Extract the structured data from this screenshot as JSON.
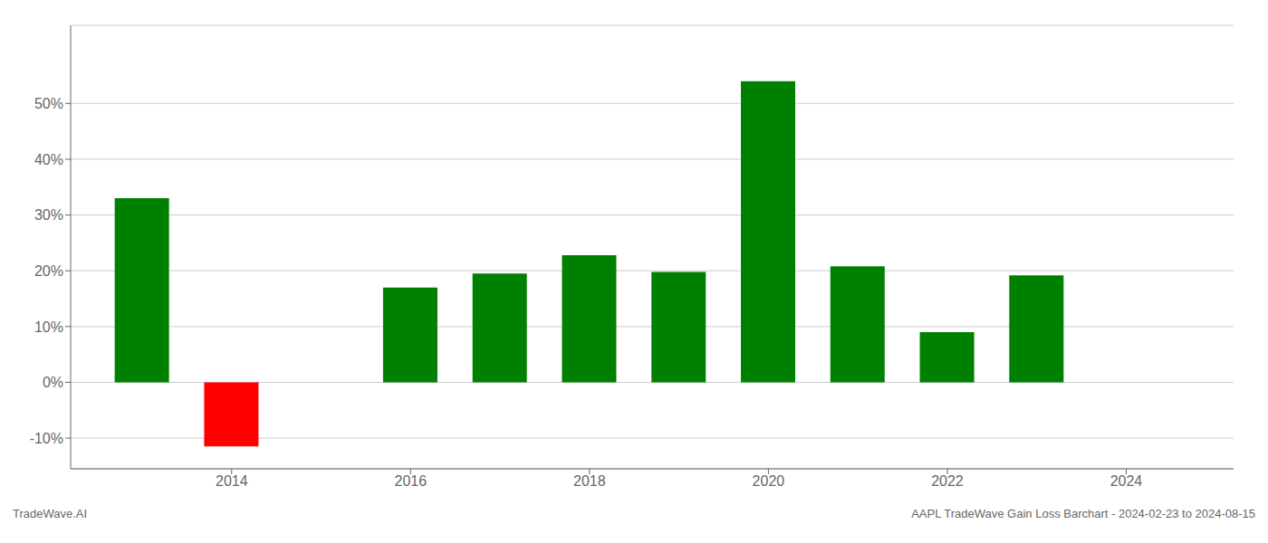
{
  "chart_data": {
    "type": "bar",
    "x": [
      2013,
      2014,
      2016,
      2017,
      2018,
      2019,
      2020,
      2021,
      2022,
      2023
    ],
    "values": [
      0.33,
      -0.115,
      0.17,
      0.195,
      0.228,
      0.198,
      0.54,
      0.208,
      0.09,
      0.192
    ],
    "colors": [
      "#008000",
      "#ff0000",
      "#008000",
      "#008000",
      "#008000",
      "#008000",
      "#008000",
      "#008000",
      "#008000",
      "#008000"
    ],
    "xlim": [
      2012.2,
      2025.2
    ],
    "xticks": [
      2014,
      2016,
      2018,
      2020,
      2022,
      2024
    ],
    "ylim": [
      -0.155,
      0.64
    ],
    "yticks": [
      {
        "value": -0.1,
        "label": "-10%"
      },
      {
        "value": 0.0,
        "label": "0%"
      },
      {
        "value": 0.1,
        "label": "10%"
      },
      {
        "value": 0.2,
        "label": "20%"
      },
      {
        "value": 0.3,
        "label": "30%"
      },
      {
        "value": 0.4,
        "label": "40%"
      },
      {
        "value": 0.5,
        "label": "50%"
      }
    ],
    "grid": true,
    "annotations": [
      "TradeWave.AI",
      "AAPL TradeWave Gain Loss Barchart - 2024-02-23 to 2024-08-15"
    ]
  }
}
